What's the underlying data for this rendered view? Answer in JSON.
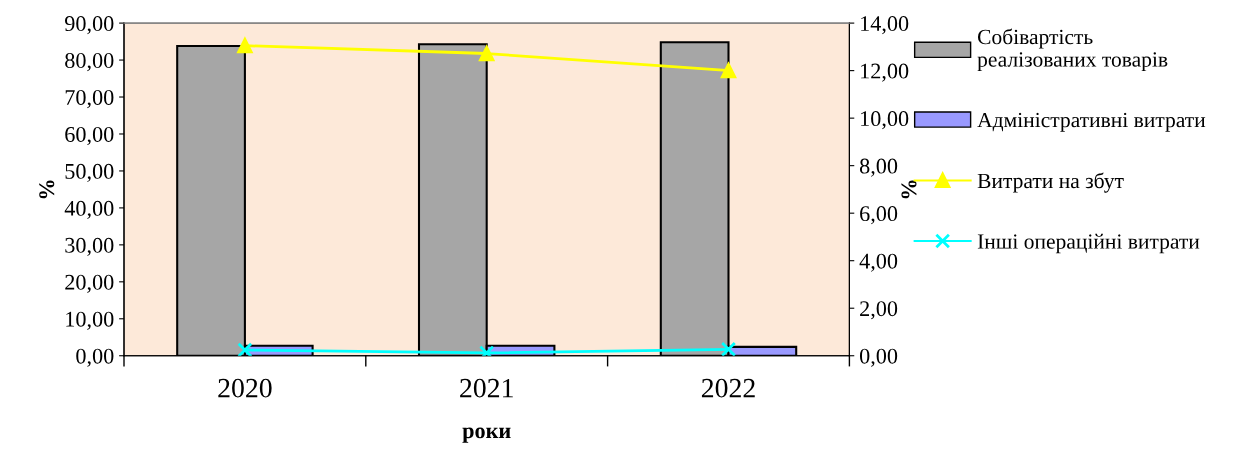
{
  "chart_data": {
    "type": "bar",
    "xlabel": "роки",
    "ylabel": "%",
    "y2label": "%",
    "categories": [
      "2020",
      "2021",
      "2022"
    ],
    "series": [
      {
        "name": "Собівартість реалізованих товарів",
        "color": "#a6a6a6",
        "values": [
          83.8,
          84.3,
          84.8
        ]
      },
      {
        "name": "Адміністративні витрати",
        "color": "#9999ff",
        "values": [
          2.7,
          2.7,
          2.4
        ]
      },
      {
        "name": "Витрати на збут",
        "type": "line",
        "axis": "y2",
        "marker": "triangle",
        "color": "#ffff00",
        "values": [
          13.05,
          12.72,
          12.0
        ]
      },
      {
        "name": "Інші операційні витрати",
        "type": "line",
        "axis": "y2",
        "marker": "cross",
        "color": "#00ffff",
        "values": [
          0.24,
          0.12,
          0.27
        ]
      }
    ],
    "ylim": [
      0,
      90
    ],
    "yticks": [
      {
        "value": 0,
        "label": "0,00"
      },
      {
        "value": 10,
        "label": "10,00"
      },
      {
        "value": 20,
        "label": "20,00"
      },
      {
        "value": 30,
        "label": "30,00"
      },
      {
        "value": 40,
        "label": "40,00"
      },
      {
        "value": 50,
        "label": "50,00"
      },
      {
        "value": 60,
        "label": "60,00"
      },
      {
        "value": 70,
        "label": "70,00"
      },
      {
        "value": 80,
        "label": "80,00"
      },
      {
        "value": 90,
        "label": "90,00"
      }
    ],
    "y2lim": [
      0,
      14
    ],
    "y2ticks": [
      {
        "value": 0,
        "label": "0,00"
      },
      {
        "value": 2,
        "label": "2,00"
      },
      {
        "value": 4,
        "label": "4,00"
      },
      {
        "value": 6,
        "label": "6,00"
      },
      {
        "value": 8,
        "label": "8,00"
      },
      {
        "value": 10,
        "label": "10,00"
      },
      {
        "value": 12,
        "label": "12,00"
      },
      {
        "value": 14,
        "label": "14,00"
      }
    ],
    "legend": "right",
    "grid": false
  }
}
